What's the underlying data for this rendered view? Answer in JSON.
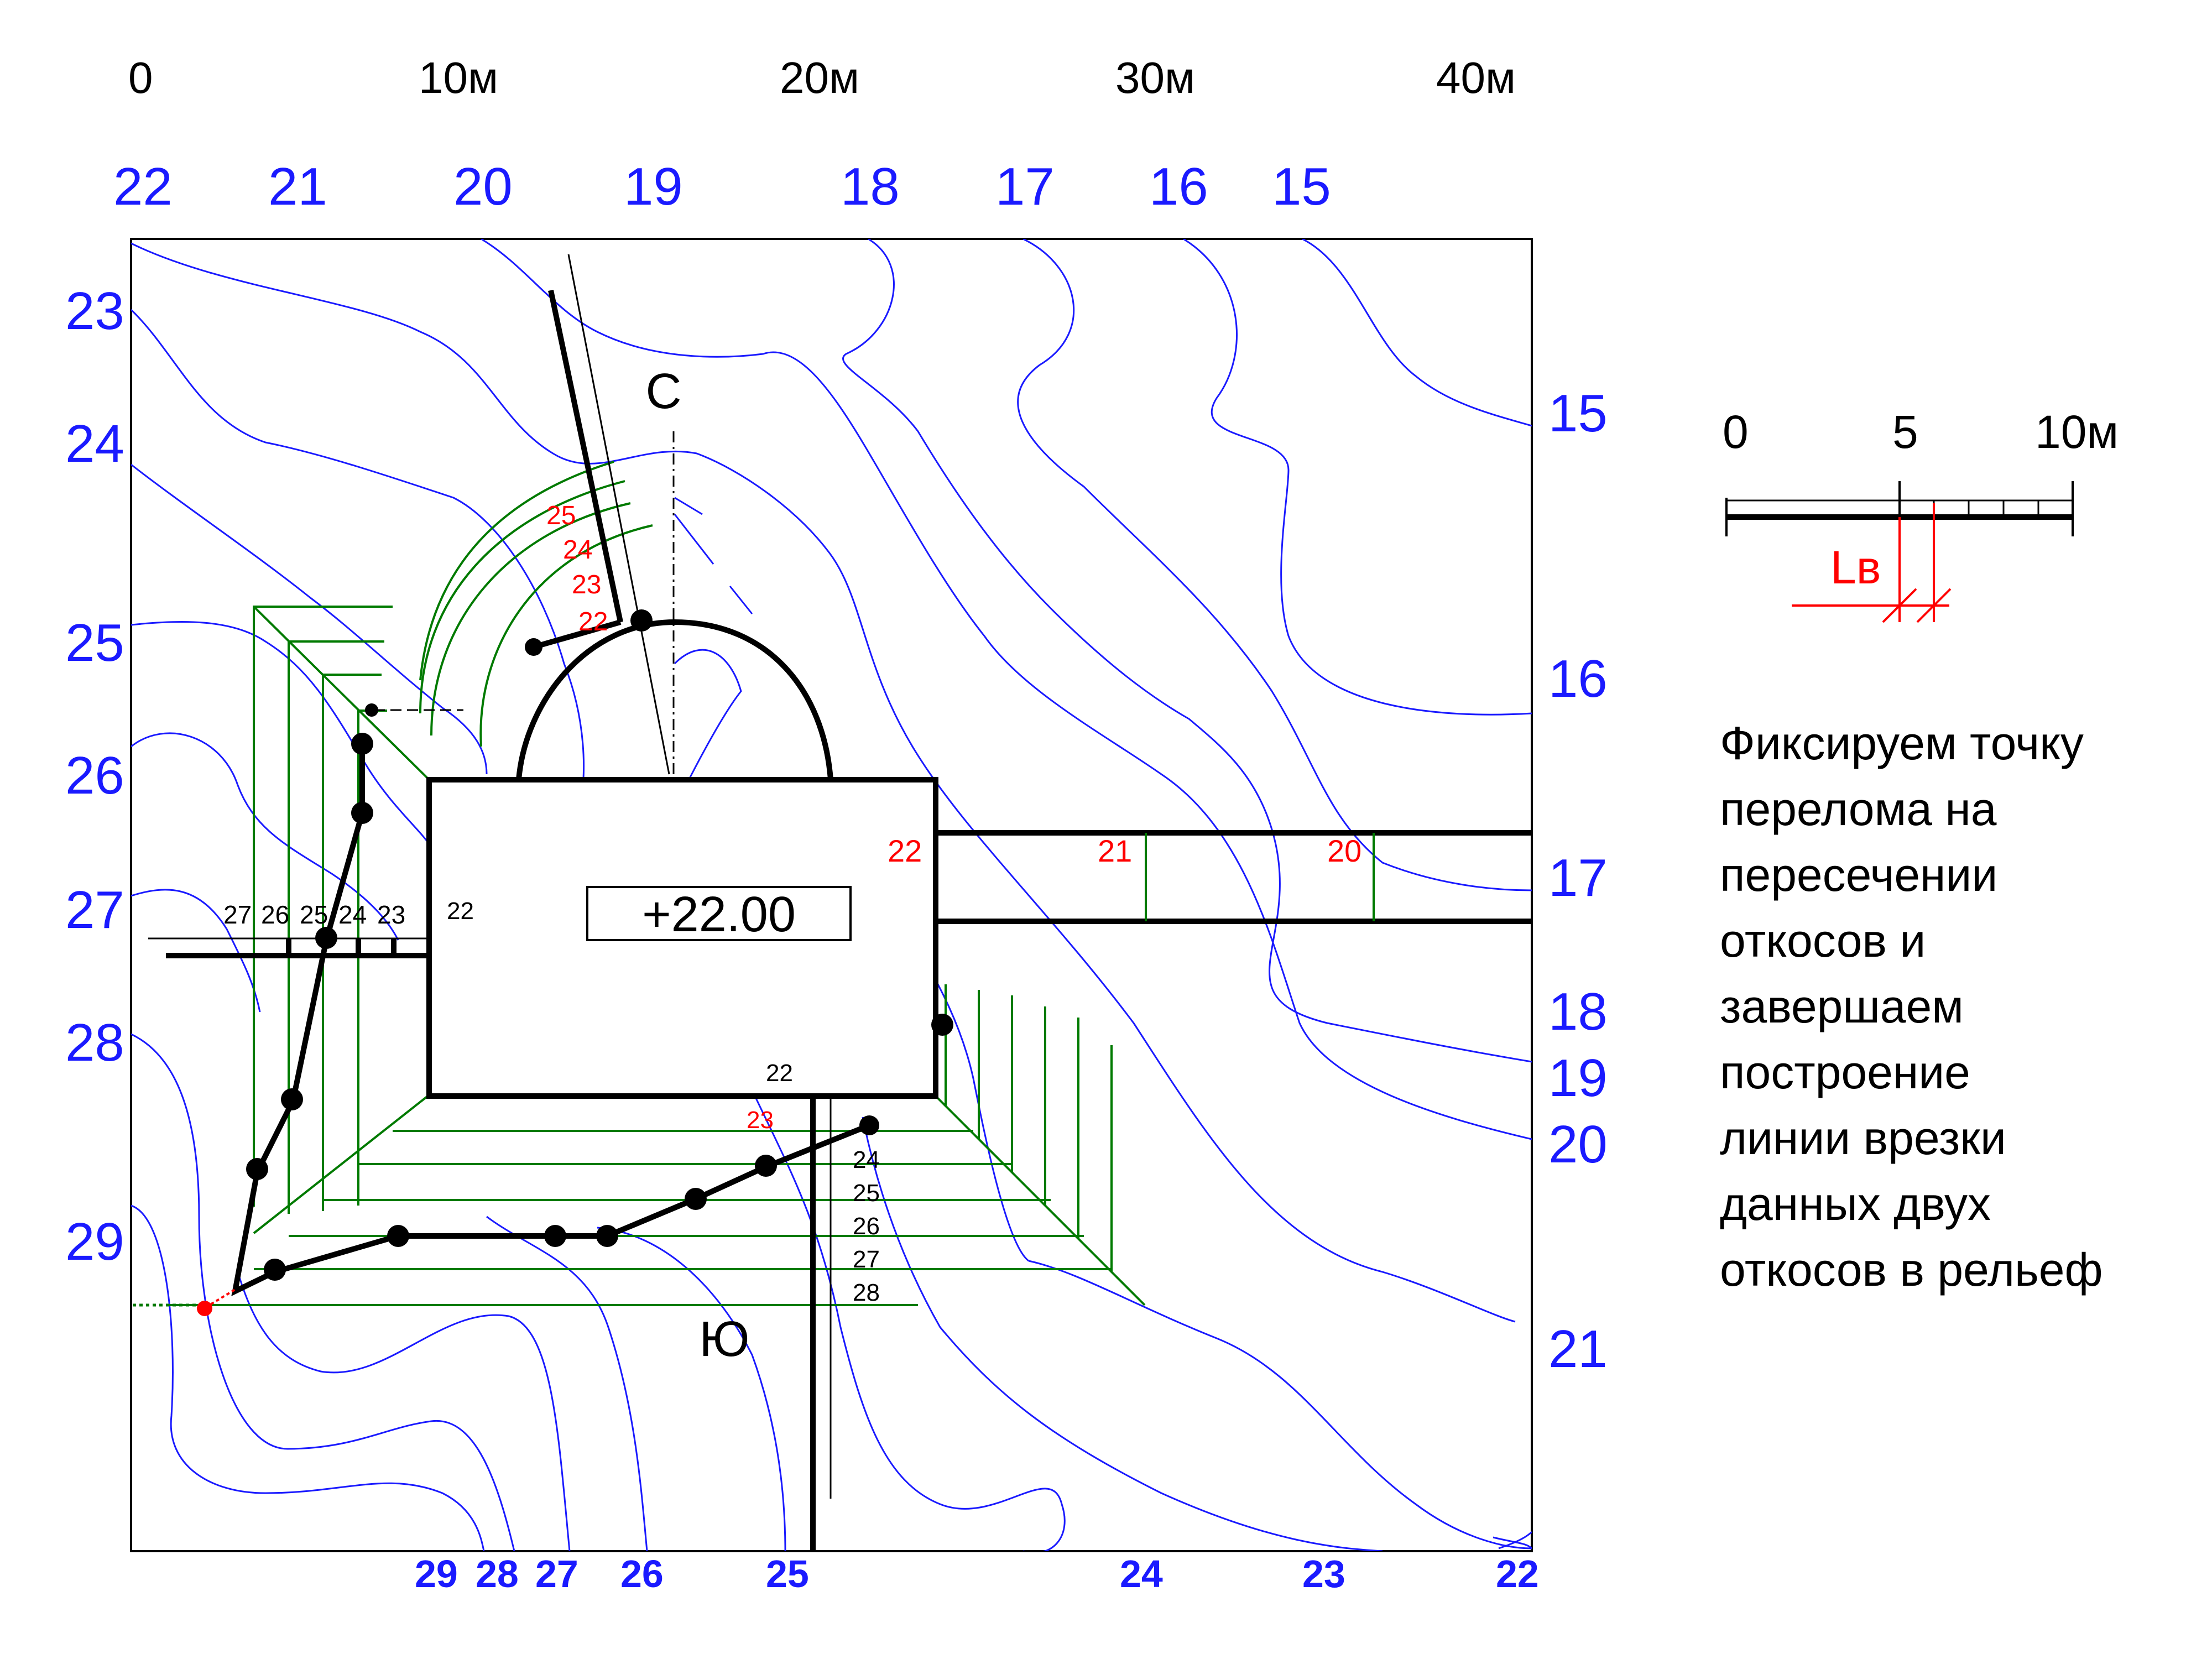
{
  "scale_top": [
    "0",
    "10м",
    "20м",
    "30м",
    "40м"
  ],
  "top_contour_labels": [
    "22",
    "21",
    "20",
    "19",
    "18",
    "17",
    "16",
    "15"
  ],
  "left_contour_labels": [
    "23",
    "24",
    "25",
    "26",
    "27",
    "28",
    "29"
  ],
  "right_contour_labels": [
    "15",
    "16",
    "17",
    "18",
    "19",
    "20",
    "21"
  ],
  "bottom_contour_labels": [
    "29",
    "28",
    "27",
    "26",
    "25",
    "24",
    "23",
    "22"
  ],
  "compass": {
    "north": "С",
    "south": "Ю"
  },
  "platform": {
    "elevation": "+22.00",
    "top_label": "22",
    "bottom_label": "22",
    "left_label": "22"
  },
  "north_slope_labels": [
    "25",
    "24",
    "23",
    "22"
  ],
  "road_labels": [
    "22",
    "21",
    "20"
  ],
  "west_slope_labels": [
    "27",
    "26",
    "25",
    "24",
    "23"
  ],
  "south_slope_labels": [
    "23",
    "24",
    "25",
    "26",
    "27",
    "28"
  ],
  "small_scale": {
    "labels": [
      "0",
      "5",
      "10м"
    ],
    "marker": "Lв"
  },
  "note_lines": [
    "Фиксируем точку",
    "перелома на",
    "пересечении",
    "откосов и",
    "завершаем",
    "построение",
    "линии врезки",
    "данных двух",
    "откосов в рельеф"
  ],
  "colors": {
    "contour": "#1a1aff",
    "slope": "#007a00",
    "mark": "#ff0000",
    "line": "#000000"
  }
}
